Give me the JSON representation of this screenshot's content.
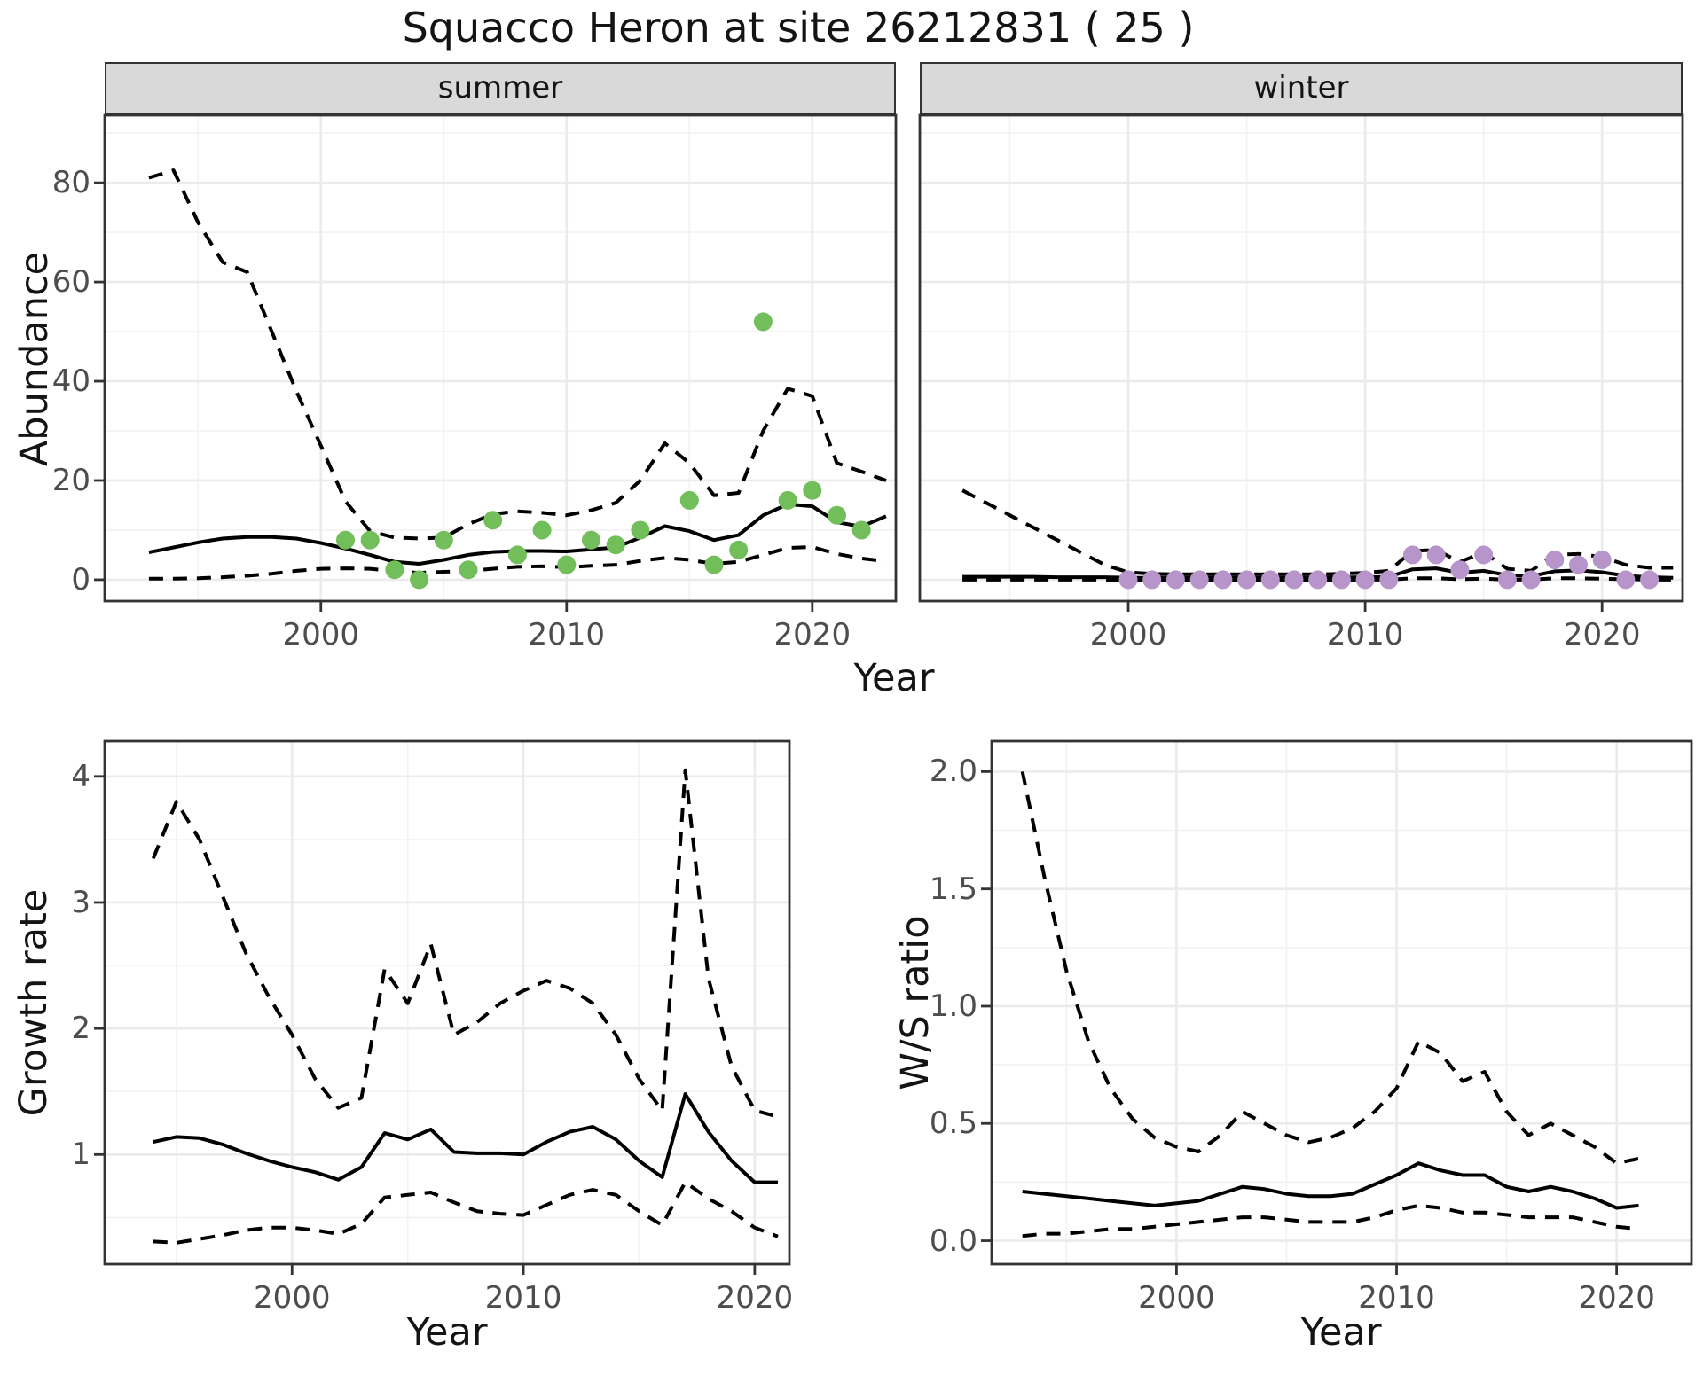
{
  "title": "Squacco Heron at site 26212831 ( 25 )",
  "styles": {
    "strip_fill": "#D9D9D9",
    "panel_border": "#333333",
    "grid_major": "#EBEBEB",
    "grid_minor": "#F2F2F2",
    "line_color": "#000000",
    "tick_label_color": "#4D4D4D",
    "summer_point_color": "#71BE5A",
    "winter_point_color": "#B794C9"
  },
  "chart_data": [
    {
      "id": "abundance-summer",
      "type": "line",
      "facet": "summer",
      "xlabel": "Year",
      "ylabel": "Abundance",
      "xlim": [
        1991.2,
        2023.4
      ],
      "ylim": [
        -4.3,
        93.6
      ],
      "xticks": [
        2000,
        2010,
        2020
      ],
      "xtick_labels": [
        "2000",
        "2010",
        "2020"
      ],
      "xticks_minor": [
        1995,
        2005,
        2015
      ],
      "yticks": [
        0,
        20,
        40,
        60,
        80
      ],
      "ytick_labels": [
        "0",
        "20",
        "40",
        "60",
        "80"
      ],
      "yticks_minor": [
        10,
        30,
        50,
        70,
        90
      ],
      "years": [
        1993,
        1994,
        1995,
        1996,
        1997,
        1998,
        1999,
        2000,
        2001,
        2002,
        2003,
        2004,
        2005,
        2006,
        2007,
        2008,
        2009,
        2010,
        2011,
        2012,
        2013,
        2014,
        2015,
        2016,
        2017,
        2018,
        2019,
        2020,
        2021,
        2022,
        2023
      ],
      "median": [
        5.5,
        6.5,
        7.5,
        8.3,
        8.6,
        8.6,
        8.3,
        7.4,
        6.3,
        5.0,
        3.6,
        3.2,
        4.0,
        5.0,
        5.6,
        5.8,
        5.8,
        5.7,
        6.1,
        6.5,
        8.5,
        10.8,
        9.8,
        8.0,
        9.0,
        13.0,
        15.2,
        14.8,
        11.6,
        10.7,
        12.8
      ],
      "upper_ci": [
        81,
        82.5,
        72,
        64,
        62,
        50,
        38,
        27,
        15.8,
        9.8,
        8.5,
        8.3,
        8.5,
        11.2,
        13.2,
        13.8,
        13.5,
        13.0,
        14.0,
        15.5,
        20,
        27.5,
        23.5,
        17,
        17.5,
        30,
        38.5,
        37,
        23.5,
        21.8,
        20
      ],
      "lower_ci": [
        0.2,
        0.2,
        0.3,
        0.5,
        0.8,
        1.2,
        1.8,
        2.2,
        2.3,
        2.2,
        1.7,
        1.4,
        1.6,
        1.8,
        2.2,
        2.6,
        2.7,
        2.5,
        2.8,
        3.0,
        3.8,
        4.4,
        4.0,
        3.2,
        3.6,
        5.0,
        6.4,
        6.6,
        5.2,
        4.3,
        3.7
      ],
      "points": {
        "color": "#71BE5A",
        "years": [
          2001,
          2002,
          2003,
          2004,
          2005,
          2006,
          2007,
          2008,
          2009,
          2010,
          2011,
          2012,
          2013,
          2015,
          2016,
          2017,
          2018,
          2019,
          2020,
          2021,
          2022
        ],
        "values": [
          8,
          8,
          2,
          0,
          8,
          2,
          12,
          5,
          10,
          3,
          8,
          7,
          10,
          16,
          3,
          6,
          52,
          16,
          18,
          13,
          10
        ]
      }
    },
    {
      "id": "abundance-winter",
      "type": "line",
      "facet": "winter",
      "xlabel": "Year",
      "ylabel": "Abundance",
      "xlim": [
        1991.2,
        2023.4
      ],
      "ylim": [
        -4.3,
        93.6
      ],
      "xticks": [
        2000,
        2010,
        2020
      ],
      "xtick_labels": [
        "2000",
        "2010",
        "2020"
      ],
      "xticks_minor": [
        1995,
        2005,
        2015
      ],
      "yticks": [
        0,
        20,
        40,
        60,
        80
      ],
      "ytick_labels": [
        "0",
        "20",
        "40",
        "60",
        "80"
      ],
      "yticks_minor": [
        10,
        30,
        50,
        70,
        90
      ],
      "years": [
        1993,
        1994,
        1995,
        1996,
        1997,
        1998,
        1999,
        2000,
        2001,
        2002,
        2003,
        2004,
        2005,
        2006,
        2007,
        2008,
        2009,
        2010,
        2011,
        2012,
        2013,
        2014,
        2015,
        2016,
        2017,
        2018,
        2019,
        2020,
        2021,
        2022,
        2023
      ],
      "median": [
        0.6,
        0.6,
        0.6,
        0.6,
        0.5,
        0.5,
        0.5,
        0.4,
        0.4,
        0.4,
        0.4,
        0.4,
        0.4,
        0.4,
        0.4,
        0.4,
        0.45,
        0.5,
        0.6,
        2.1,
        2.3,
        1.4,
        1.8,
        0.9,
        0.7,
        1.7,
        1.9,
        1.5,
        0.8,
        0.5,
        0.4
      ],
      "upper_ci": [
        18,
        15.5,
        13,
        10.5,
        8,
        5.5,
        3,
        1.5,
        1.2,
        1.1,
        1.1,
        1.1,
        1.1,
        1.1,
        1.1,
        1.1,
        1.2,
        1.4,
        1.8,
        5.8,
        6.0,
        3.6,
        5.5,
        2.2,
        1.8,
        5.0,
        5.2,
        4.6,
        3.0,
        2.4,
        2.4
      ],
      "lower_ci": [
        0,
        0,
        0,
        0,
        0,
        0,
        0,
        -0.1,
        -0.1,
        -0.1,
        -0.1,
        -0.1,
        -0.1,
        -0.1,
        -0.1,
        -0.1,
        -0.1,
        0,
        0,
        0.3,
        0.3,
        0.1,
        0.2,
        0,
        0,
        0.3,
        0.3,
        0.2,
        0.1,
        0,
        0
      ],
      "points": {
        "color": "#B794C9",
        "years": [
          2000,
          2001,
          2002,
          2003,
          2004,
          2005,
          2006,
          2007,
          2008,
          2009,
          2010,
          2011,
          2012,
          2013,
          2014,
          2015,
          2016,
          2017,
          2018,
          2019,
          2020,
          2021,
          2022
        ],
        "values": [
          0,
          0,
          0,
          0,
          0,
          0,
          0,
          0,
          0,
          0,
          0,
          0,
          5,
          5,
          2,
          5,
          0,
          0,
          4,
          3,
          4,
          0,
          0
        ]
      }
    },
    {
      "id": "growth-rate",
      "type": "line",
      "facet": null,
      "xlabel": "Year",
      "ylabel": "Growth rate",
      "xlim": [
        1991.9,
        2021.5
      ],
      "ylim": [
        0.13,
        4.28
      ],
      "xticks": [
        2000,
        2010,
        2020
      ],
      "xtick_labels": [
        "2000",
        "2010",
        "2020"
      ],
      "xticks_minor": [
        1995,
        2005,
        2015
      ],
      "yticks": [
        1,
        2,
        3,
        4
      ],
      "ytick_labels": [
        "1",
        "2",
        "3",
        "4"
      ],
      "yticks_minor": [
        0.5,
        1.5,
        2.5,
        3.5
      ],
      "years": [
        1994,
        1995,
        1996,
        1997,
        1998,
        1999,
        2000,
        2001,
        2002,
        2003,
        2004,
        2005,
        2006,
        2007,
        2008,
        2009,
        2010,
        2011,
        2012,
        2013,
        2014,
        2015,
        2016,
        2017,
        2018,
        2019,
        2020,
        2021
      ],
      "median": [
        1.1,
        1.14,
        1.13,
        1.08,
        1.01,
        0.95,
        0.9,
        0.86,
        0.8,
        0.9,
        1.17,
        1.12,
        1.2,
        1.02,
        1.01,
        1.01,
        1.0,
        1.1,
        1.18,
        1.22,
        1.12,
        0.95,
        0.82,
        1.48,
        1.18,
        0.95,
        0.78,
        0.78
      ],
      "upper_ci": [
        3.35,
        3.8,
        3.5,
        3.05,
        2.6,
        2.25,
        1.95,
        1.6,
        1.37,
        1.45,
        2.47,
        2.2,
        2.67,
        1.95,
        2.05,
        2.2,
        2.3,
        2.38,
        2.32,
        2.2,
        1.95,
        1.6,
        1.35,
        4.05,
        2.4,
        1.7,
        1.35,
        1.3
      ],
      "lower_ci": [
        0.31,
        0.3,
        0.33,
        0.36,
        0.4,
        0.42,
        0.42,
        0.4,
        0.37,
        0.45,
        0.66,
        0.68,
        0.7,
        0.62,
        0.55,
        0.53,
        0.52,
        0.6,
        0.68,
        0.72,
        0.68,
        0.55,
        0.44,
        0.78,
        0.65,
        0.55,
        0.42,
        0.35
      ],
      "points": null
    },
    {
      "id": "ws-ratio",
      "type": "line",
      "facet": null,
      "xlabel": "Year",
      "ylabel": "W/S ratio",
      "xlim": [
        1991.6,
        2023.4
      ],
      "ylim": [
        -0.1,
        2.13
      ],
      "xticks": [
        2000,
        2010,
        2020
      ],
      "xtick_labels": [
        "2000",
        "2010",
        "2020"
      ],
      "xticks_minor": [
        1995,
        2005,
        2015
      ],
      "yticks": [
        0.0,
        0.5,
        1.0,
        1.5,
        2.0
      ],
      "ytick_labels": [
        "0.0",
        "0.5",
        "1.0",
        "1.5",
        "2.0"
      ],
      "yticks_minor": [
        0.25,
        0.75,
        1.25,
        1.75
      ],
      "years": [
        1993,
        1994,
        1995,
        1996,
        1997,
        1998,
        1999,
        2000,
        2001,
        2002,
        2003,
        2004,
        2005,
        2006,
        2007,
        2008,
        2009,
        2010,
        2011,
        2012,
        2013,
        2014,
        2015,
        2016,
        2017,
        2018,
        2019,
        2020,
        2021
      ],
      "median": [
        0.21,
        0.2,
        0.19,
        0.18,
        0.17,
        0.16,
        0.15,
        0.16,
        0.17,
        0.2,
        0.23,
        0.22,
        0.2,
        0.19,
        0.19,
        0.2,
        0.24,
        0.28,
        0.33,
        0.3,
        0.28,
        0.28,
        0.23,
        0.21,
        0.23,
        0.21,
        0.18,
        0.14,
        0.15
      ],
      "upper_ci": [
        2.0,
        1.55,
        1.15,
        0.85,
        0.65,
        0.52,
        0.44,
        0.4,
        0.38,
        0.45,
        0.55,
        0.5,
        0.45,
        0.42,
        0.44,
        0.48,
        0.55,
        0.65,
        0.85,
        0.8,
        0.68,
        0.72,
        0.55,
        0.45,
        0.5,
        0.45,
        0.4,
        0.33,
        0.35
      ],
      "lower_ci": [
        0.02,
        0.03,
        0.03,
        0.04,
        0.05,
        0.05,
        0.06,
        0.07,
        0.08,
        0.09,
        0.1,
        0.1,
        0.09,
        0.08,
        0.08,
        0.08,
        0.1,
        0.13,
        0.15,
        0.14,
        0.12,
        0.12,
        0.11,
        0.1,
        0.1,
        0.1,
        0.08,
        0.06,
        0.05
      ],
      "points": null
    }
  ]
}
